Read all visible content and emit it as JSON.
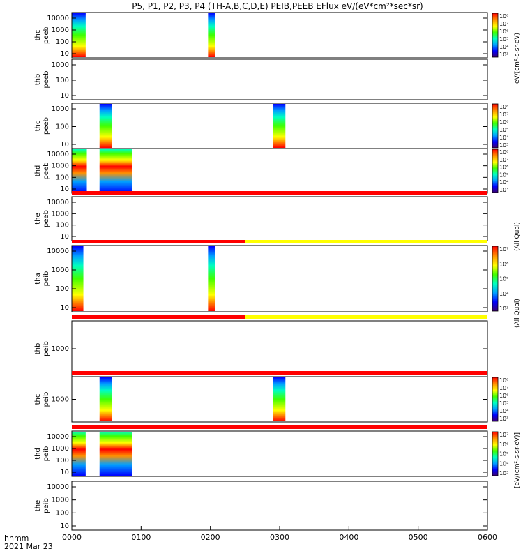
{
  "title": "P5, P1, P2, P3, P4 (TH-A,B,C,D,E) PEIB,PEEB EFlux eV/(eV*cm²*sec*sr)",
  "time_label": "hhmm",
  "date_label": "2021 Mar 23",
  "x_ticks": [
    "0000",
    "0100",
    "0200",
    "0300",
    "0400",
    "0500",
    "0600"
  ],
  "x_range_minutes": [
    0,
    360
  ],
  "colors": {
    "bar_red": "#ff0000",
    "bar_yellow": "#ffff00",
    "spectrum": [
      "#3c0070",
      "#0000ff",
      "#00a0ff",
      "#00ffc0",
      "#40ff00",
      "#ffff00",
      "#ff9000",
      "#ff0000"
    ]
  },
  "colorbar_unit_labels": [
    "eV/(cm²-s-sr-eV)",
    "(All Qual)",
    "[eV/(cm²-s-sr-eV)]",
    "(All Qual)"
  ],
  "chart_data": [
    {
      "type": "heatmap",
      "ylabel": [
        "thc",
        "peeb"
      ],
      "yticks": [
        "10000",
        "1000",
        "100",
        "10"
      ],
      "colorbar_ticks": [
        "10⁸",
        "10⁷",
        "10⁶",
        "10⁵",
        "10⁴",
        "10³"
      ],
      "blocks": [
        {
          "t0": 0,
          "t1": 12
        },
        {
          "t0": 118,
          "t1": 124
        }
      ]
    },
    {
      "type": "heatmap",
      "ylabel": [
        "thb",
        "peeb"
      ],
      "yticks": [
        "1000",
        "100",
        "10"
      ],
      "colorbar_ticks": [],
      "blocks": []
    },
    {
      "type": "heatmap",
      "ylabel": [
        "thc",
        "peeb"
      ],
      "yticks": [
        "1000",
        "100",
        "10"
      ],
      "colorbar_ticks": [
        "10⁸",
        "10⁷",
        "10⁶",
        "10⁵",
        "10⁴",
        "10³"
      ],
      "blocks": [
        {
          "t0": 24,
          "t1": 35
        },
        {
          "t0": 174,
          "t1": 185
        }
      ]
    },
    {
      "type": "heatmap",
      "ylabel": [
        "thd",
        "peeb"
      ],
      "yticks": [
        "10000",
        "1000",
        "100",
        "10"
      ],
      "colorbar_ticks": [
        "10⁸",
        "10⁷",
        "10⁶",
        "10⁵",
        "10⁴",
        "10³"
      ],
      "blocks": [
        {
          "t0": 0,
          "t1": 13
        },
        {
          "t0": 24,
          "t1": 52
        }
      ]
    },
    {
      "type": "heatmap",
      "ylabel": [
        "the",
        "peeb"
      ],
      "yticks": [
        "10000",
        "1000",
        "100",
        "10"
      ],
      "colorbar_ticks": [],
      "blocks": [],
      "quality_bar": [
        {
          "t0": 0,
          "t1": 360,
          "color": "red"
        }
      ]
    },
    {
      "type": "heatmap",
      "ylabel": [
        "tha",
        "peib"
      ],
      "yticks": [
        "10000",
        "1000",
        "100",
        "10"
      ],
      "colorbar_ticks": [
        "10⁷",
        "10⁶",
        "10⁵",
        "10⁴",
        "10³"
      ],
      "blocks": [
        {
          "t0": 0,
          "t1": 10
        },
        {
          "t0": 118,
          "t1": 124
        }
      ],
      "quality_bar": [
        {
          "t0": 0,
          "t1": 150,
          "color": "red"
        },
        {
          "t0": 150,
          "t1": 360,
          "color": "yellow"
        }
      ]
    },
    {
      "type": "heatmap",
      "ylabel": [
        "thb",
        "peib"
      ],
      "yticks": [
        "1000"
      ],
      "colorbar_ticks": [],
      "blocks": [],
      "quality_bar": [
        {
          "t0": 0,
          "t1": 150,
          "color": "red"
        },
        {
          "t0": 150,
          "t1": 360,
          "color": "yellow"
        }
      ]
    },
    {
      "type": "heatmap",
      "ylabel": [
        "thc",
        "peib"
      ],
      "yticks": [
        "1000"
      ],
      "colorbar_ticks": [
        "10⁸",
        "10⁷",
        "10⁶",
        "10⁵",
        "10⁴",
        "10³"
      ],
      "blocks": [
        {
          "t0": 24,
          "t1": 35
        },
        {
          "t0": 174,
          "t1": 185
        }
      ],
      "quality_bar": [
        {
          "t0": 0,
          "t1": 360,
          "color": "red"
        }
      ]
    },
    {
      "type": "heatmap",
      "ylabel": [
        "thd",
        "peib"
      ],
      "yticks": [
        "10000",
        "1000",
        "100",
        "10"
      ],
      "colorbar_ticks": [
        "10⁷",
        "10⁶",
        "10⁵",
        "10⁴",
        "10³"
      ],
      "blocks": [
        {
          "t0": 0,
          "t1": 12
        },
        {
          "t0": 24,
          "t1": 52
        }
      ],
      "quality_bar": [
        {
          "t0": 0,
          "t1": 360,
          "color": "red"
        }
      ]
    },
    {
      "type": "heatmap",
      "ylabel": [
        "the",
        "peib"
      ],
      "yticks": [
        "10000",
        "1000",
        "100",
        "10"
      ],
      "colorbar_ticks": [],
      "blocks": []
    }
  ]
}
